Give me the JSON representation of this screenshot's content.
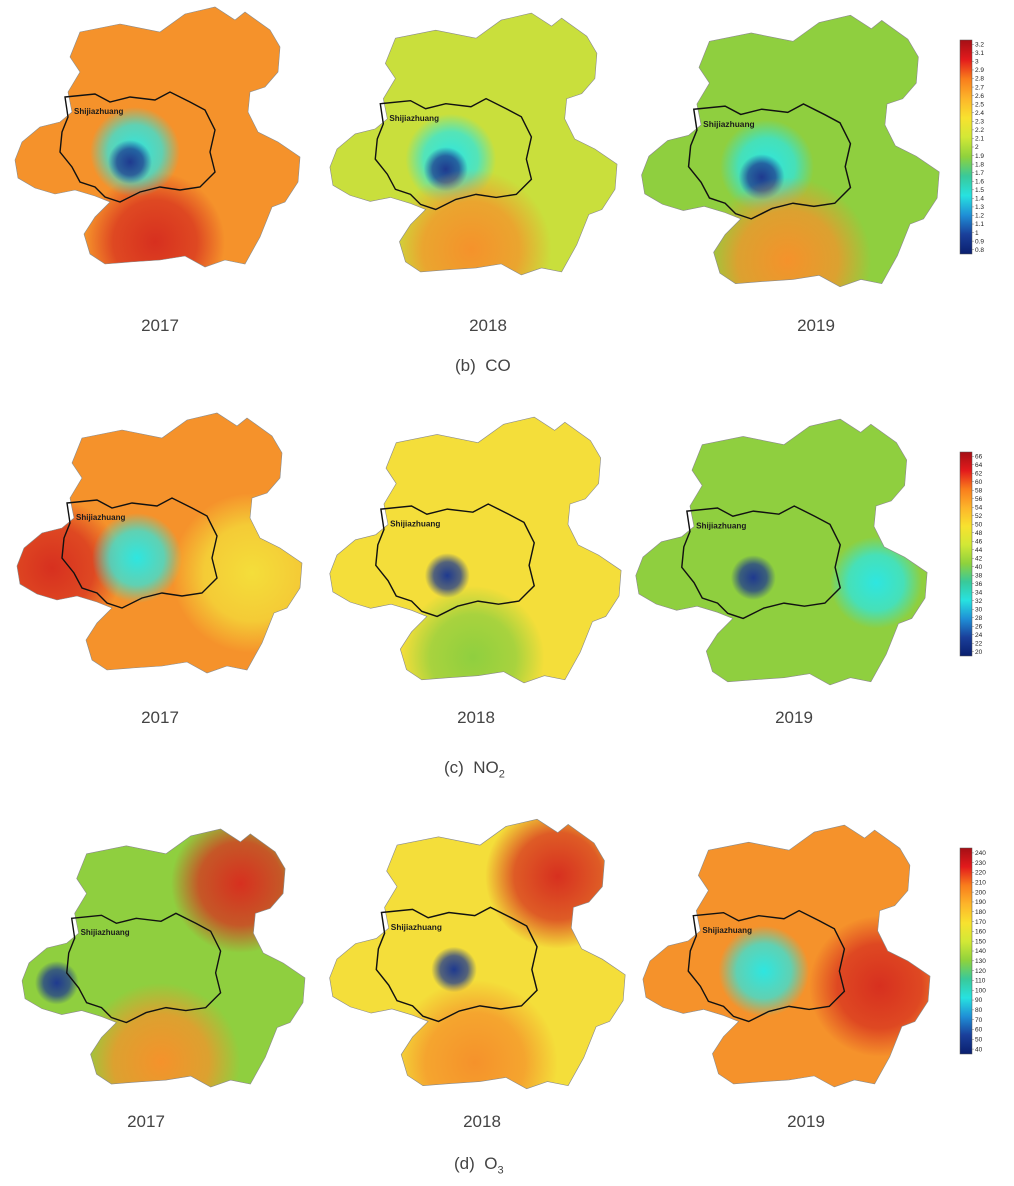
{
  "city_label": "Shijiazhuang",
  "panels": [
    {
      "id": "co",
      "caption_prefix": "(b)",
      "caption_main": "CO",
      "caption_sub": "",
      "years": [
        "2017",
        "2018",
        "2019"
      ],
      "legend_ticks": [
        "3.2",
        "3.1",
        "3",
        "2.9",
        "2.8",
        "2.7",
        "2.6",
        "2.5",
        "2.4",
        "2.3",
        "2.2",
        "2.1",
        "2",
        "1.9",
        "1.8",
        "1.7",
        "1.6",
        "1.5",
        "1.4",
        "1.3",
        "1.2",
        "1.1",
        "1",
        "0.9",
        "0.8"
      ],
      "legend_range": [
        0.8,
        3.2
      ],
      "maps": [
        {
          "background": "orange",
          "hotspots": [
            {
              "level": "red",
              "where": "south"
            },
            {
              "level": "cyan",
              "where": "center"
            },
            {
              "level": "blue",
              "where": "center-core"
            }
          ]
        },
        {
          "background": "yellow-green",
          "hotspots": [
            {
              "level": "cyan",
              "where": "center"
            },
            {
              "level": "blue",
              "where": "center-core"
            },
            {
              "level": "orange",
              "where": "south"
            }
          ]
        },
        {
          "background": "green",
          "hotspots": [
            {
              "level": "cyan",
              "where": "center"
            },
            {
              "level": "blue",
              "where": "center-core"
            },
            {
              "level": "orange",
              "where": "south"
            }
          ]
        }
      ]
    },
    {
      "id": "no2",
      "caption_prefix": "(c)",
      "caption_main": "NO",
      "caption_sub": "2",
      "years": [
        "2017",
        "2018",
        "2019"
      ],
      "legend_ticks": [
        "66",
        "64",
        "62",
        "60",
        "58",
        "56",
        "54",
        "52",
        "50",
        "48",
        "46",
        "44",
        "42",
        "40",
        "38",
        "36",
        "34",
        "32",
        "30",
        "28",
        "26",
        "24",
        "22",
        "20"
      ],
      "legend_range": [
        20,
        66
      ],
      "maps": [
        {
          "background": "orange",
          "hotspots": [
            {
              "level": "red",
              "where": "west"
            },
            {
              "level": "cyan",
              "where": "center"
            },
            {
              "level": "yellow",
              "where": "east"
            }
          ]
        },
        {
          "background": "yellow",
          "hotspots": [
            {
              "level": "green",
              "where": "south"
            },
            {
              "level": "blue",
              "where": "center-core"
            }
          ]
        },
        {
          "background": "green",
          "hotspots": [
            {
              "level": "cyan",
              "where": "east"
            },
            {
              "level": "blue",
              "where": "center-core"
            }
          ]
        }
      ]
    },
    {
      "id": "o3",
      "caption_prefix": "(d)",
      "caption_main": "O",
      "caption_sub": "3",
      "years": [
        "2017",
        "2018",
        "2019"
      ],
      "legend_ticks": [
        "240",
        "230",
        "220",
        "210",
        "200",
        "190",
        "180",
        "170",
        "160",
        "150",
        "140",
        "130",
        "120",
        "110",
        "100",
        "90",
        "80",
        "70",
        "60",
        "50",
        "40"
      ],
      "legend_range": [
        40,
        240
      ],
      "maps": [
        {
          "background": "green",
          "hotspots": [
            {
              "level": "red",
              "where": "northeast"
            },
            {
              "level": "blue",
              "where": "west"
            },
            {
              "level": "orange",
              "where": "south"
            }
          ]
        },
        {
          "background": "yellow",
          "hotspots": [
            {
              "level": "red",
              "where": "northeast"
            },
            {
              "level": "blue",
              "where": "center"
            },
            {
              "level": "orange",
              "where": "south"
            }
          ]
        },
        {
          "background": "orange",
          "hotspots": [
            {
              "level": "cyan",
              "where": "center"
            },
            {
              "level": "red",
              "where": "east"
            }
          ]
        }
      ]
    }
  ]
}
